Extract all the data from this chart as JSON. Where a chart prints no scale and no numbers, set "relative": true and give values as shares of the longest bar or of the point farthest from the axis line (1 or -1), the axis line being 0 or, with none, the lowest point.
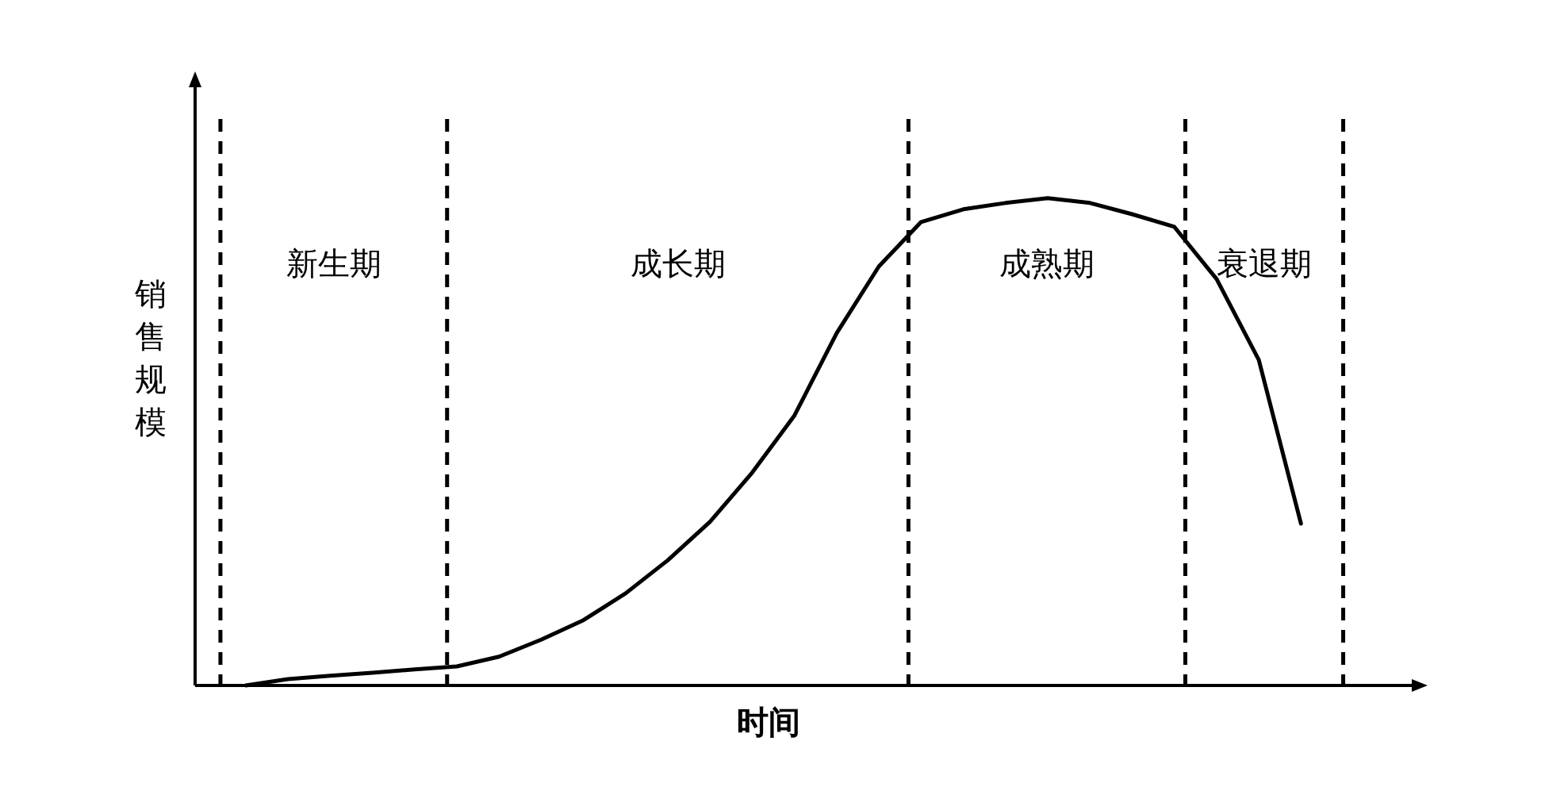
{
  "chart_data": {
    "type": "line",
    "relative": true,
    "xlabel": "时间",
    "ylabel": "销售规模",
    "color": "#000000",
    "line_style": "solid",
    "categories": [
      null,
      null,
      null,
      null,
      null,
      null,
      null,
      null,
      null,
      null,
      null,
      null,
      null,
      null,
      null,
      null,
      null,
      null,
      null,
      null,
      null,
      null,
      null,
      null,
      null,
      null
    ],
    "values": [
      0,
      0.013,
      0.02,
      0.026,
      0.033,
      0.039,
      0.059,
      0.094,
      0.134,
      0.189,
      0.257,
      0.336,
      0.437,
      0.554,
      0.723,
      0.86,
      0.951,
      0.977,
      0.99,
      1,
      0.99,
      0.967,
      0.941,
      0.834,
      0.668,
      0.332
    ],
    "annotations": [
      "新生期",
      "成长期",
      "成熟期",
      "衰退期"
    ]
  }
}
